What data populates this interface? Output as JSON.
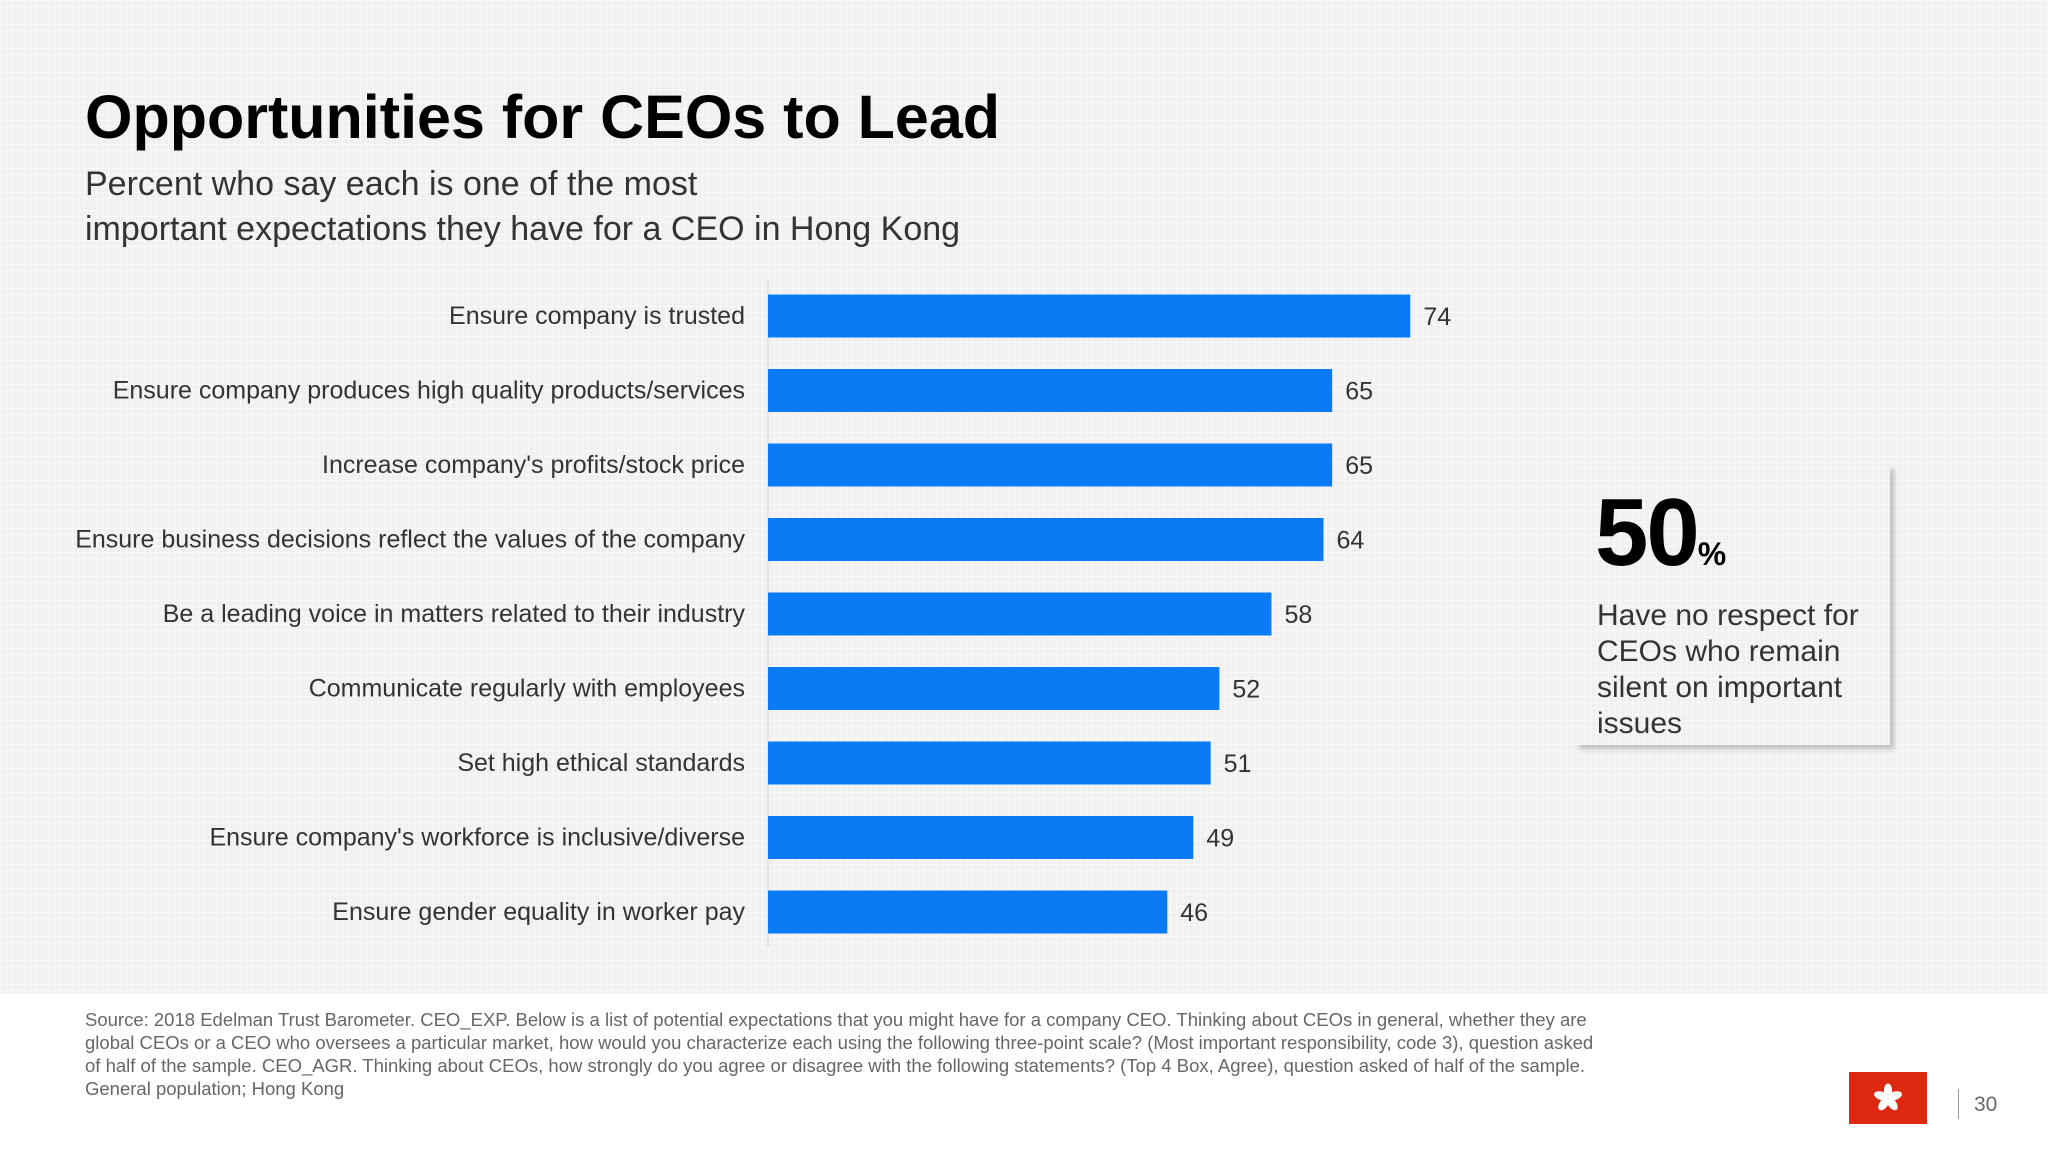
{
  "title": "Opportunities for CEOs to Lead",
  "subtitle_lines": [
    "Percent who say each is one of the most",
    "important expectations they have for a CEO in Hong Kong"
  ],
  "colors": {
    "bar": "#0a7bf5",
    "flag": "#de2910"
  },
  "chart_data": {
    "type": "bar",
    "orientation": "horizontal",
    "categories": [
      "Ensure company is trusted",
      "Ensure company produces high quality products/services",
      "Increase company's profits/stock price",
      "Ensure business decisions reflect the values of the company",
      "Be a leading voice in matters related to their industry",
      "Communicate regularly with employees",
      "Set high ethical standards",
      "Ensure company's workforce is inclusive/diverse",
      "Ensure gender equality in worker pay"
    ],
    "values": [
      74,
      65,
      65,
      64,
      58,
      52,
      51,
      49,
      46
    ],
    "xlim": [
      0,
      100
    ],
    "grid": false,
    "legend": "none"
  },
  "callout": {
    "value": "50",
    "unit": "%",
    "text": "Have no respect for CEOs who remain silent on important issues"
  },
  "footer": {
    "source": "Source: 2018 Edelman Trust Barometer. CEO_EXP. Below is a list of potential expectations that you might have for a company CEO. Thinking about CEOs in general, whether they are global CEOs or a CEO who oversees a particular market, how would you characterize each using the following three-point scale? (Most important responsibility, code 3), question asked of half of the sample. CEO_AGR. Thinking about CEOs, how strongly do you agree or disagree with the following statements? (Top 4 Box, Agree), question asked of half of the sample. General population; Hong Kong",
    "flag_icon": "hong-kong-flag-icon",
    "page_number": "30"
  }
}
